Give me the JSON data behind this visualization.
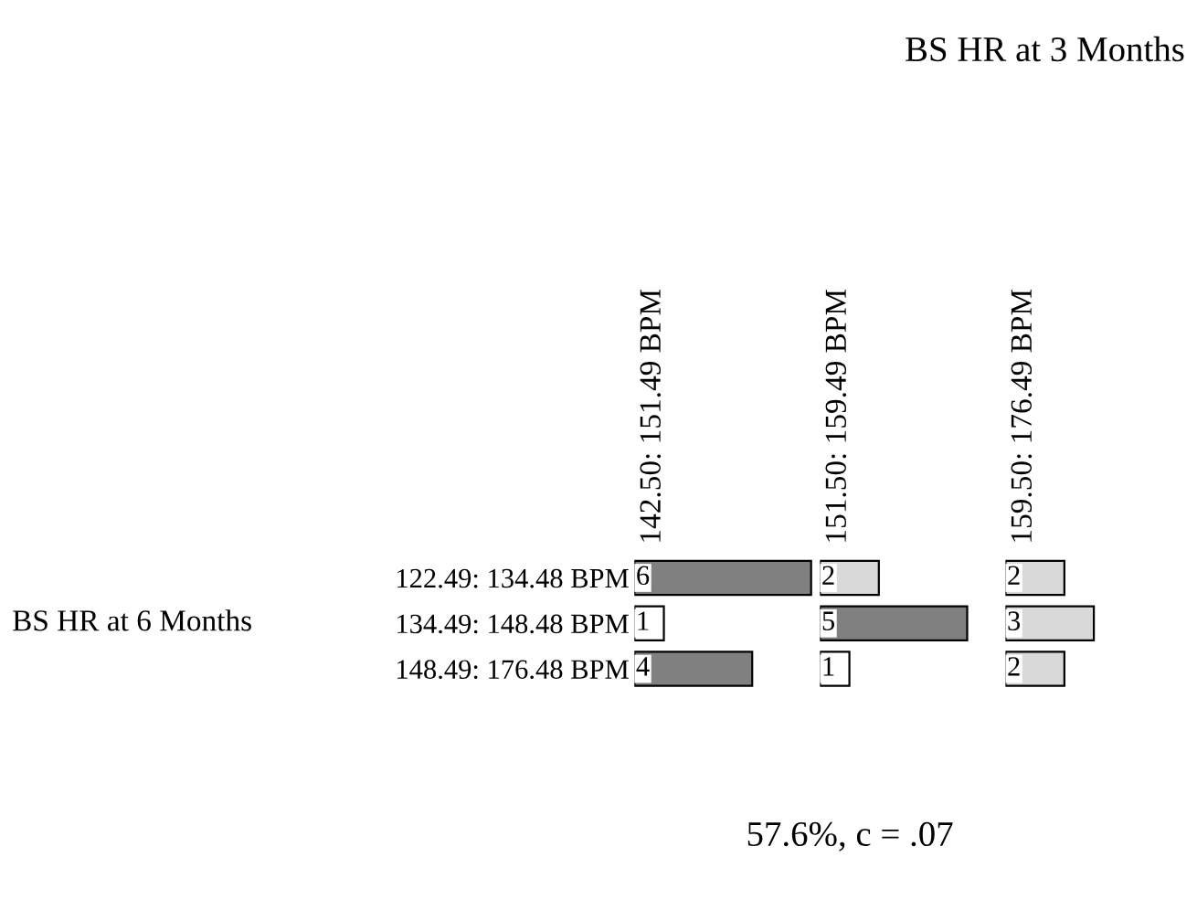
{
  "chart_data": [
    {
      "type": "bar",
      "orientation": "horizontal",
      "title": "142.50: 151.49 BPM",
      "ylabel": "BS HR at 6 Months",
      "categories": [
        "122.49: 134.48 BPM",
        "134.49: 148.48 BPM",
        "148.49: 176.48 BPM"
      ],
      "values": [
        6,
        1,
        4
      ],
      "colors": [
        "#808080",
        "#ffffff",
        "#808080"
      ],
      "data_labels": true,
      "tick_labels": "y",
      "annotations": [
        "BS HR at 3 Months",
        "57.6%, c = .07"
      ]
    },
    {
      "type": "bar",
      "orientation": "horizontal",
      "title": "151.50: 159.49 BPM",
      "categories": [
        null,
        null,
        null
      ],
      "values": [
        2,
        5,
        1
      ],
      "colors": [
        "#d9d9d9",
        "#808080",
        "#ffffff"
      ],
      "data_labels": true,
      "tick_labels": false
    },
    {
      "type": "bar",
      "orientation": "horizontal",
      "title": "159.50: 176.49 BPM",
      "categories": [
        null,
        null,
        null
      ],
      "values": [
        2,
        3,
        2
      ],
      "colors": [
        "#d9d9d9",
        "#d9d9d9",
        "#d9d9d9"
      ],
      "data_labels": true,
      "tick_labels": false
    }
  ]
}
